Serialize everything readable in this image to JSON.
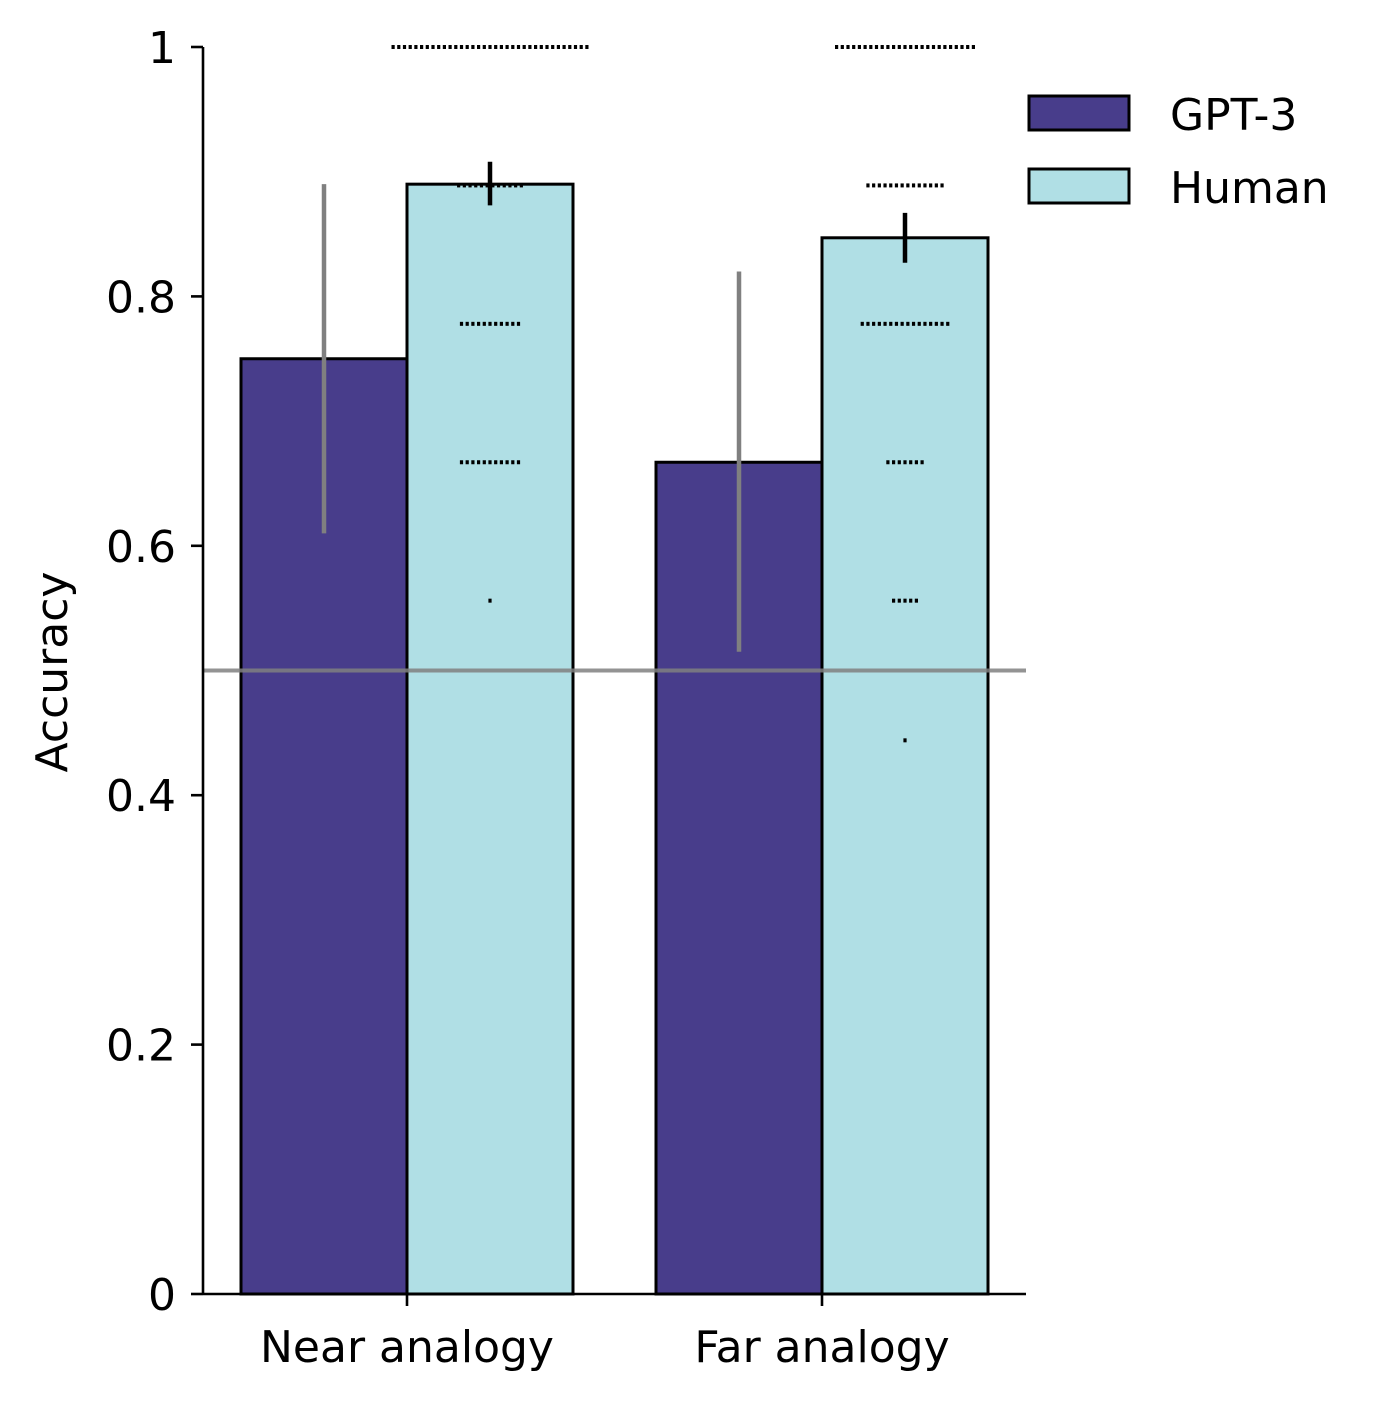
{
  "chart_data": {
    "type": "bar",
    "categories": [
      "Near analogy",
      "Far analogy"
    ],
    "ylabel": "Accuracy",
    "xlabel": "",
    "ylim": [
      0,
      1
    ],
    "yticks": [
      {
        "value": 0,
        "label": "0"
      },
      {
        "value": 0.2,
        "label": "0.2"
      },
      {
        "value": 0.4,
        "label": "0.4"
      },
      {
        "value": 0.6,
        "label": "0.6"
      },
      {
        "value": 0.8,
        "label": "0.8"
      },
      {
        "value": 1,
        "label": "1"
      }
    ],
    "reference_line": 0.5,
    "legend_position": "top-right",
    "series": [
      {
        "name": "GPT-3",
        "color": "#483d8b",
        "error_color": "#808080",
        "values": [
          0.75,
          0.667
        ],
        "ci_low": [
          0.61,
          0.515
        ],
        "ci_high": [
          0.89,
          0.82
        ]
      },
      {
        "name": "Human",
        "color": "#b0dfe5",
        "error_color": "#000000",
        "values": [
          0.89,
          0.847
        ],
        "ci_low": [
          0.873,
          0.827
        ],
        "ci_high": [
          0.908,
          0.867
        ]
      }
    ],
    "individual_points": [
      {
        "category": "Near analogy",
        "value": 1.0,
        "count": 35
      },
      {
        "category": "Near analogy",
        "value": 0.889,
        "count": 12
      },
      {
        "category": "Near analogy",
        "value": 0.778,
        "count": 11
      },
      {
        "category": "Near analogy",
        "value": 0.667,
        "count": 11
      },
      {
        "category": "Near analogy",
        "value": 0.556,
        "count": 1
      },
      {
        "category": "Far analogy",
        "value": 1.0,
        "count": 25
      },
      {
        "category": "Far analogy",
        "value": 0.889,
        "count": 14
      },
      {
        "category": "Far analogy",
        "value": 0.778,
        "count": 16
      },
      {
        "category": "Far analogy",
        "value": 0.667,
        "count": 7
      },
      {
        "category": "Far analogy",
        "value": 0.556,
        "count": 5
      },
      {
        "category": "Far analogy",
        "value": 0.444,
        "count": 1
      }
    ]
  }
}
